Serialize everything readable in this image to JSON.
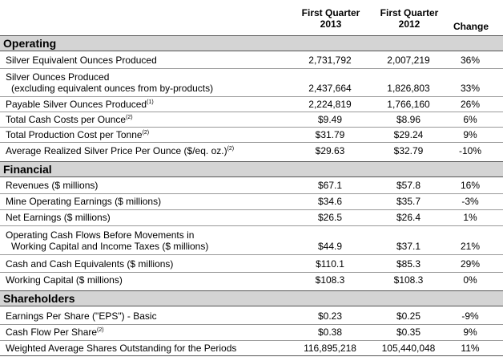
{
  "header": {
    "col1": [
      "First Quarter",
      "2013"
    ],
    "col2": [
      "First Quarter",
      "2012"
    ],
    "col3": "Change"
  },
  "sections": {
    "operating": "Operating",
    "financial": "Financial",
    "shareholders": "Shareholders"
  },
  "rows": [
    {
      "label": [
        "Silver Equivalent Ounces Produced"
      ],
      "v1": "2,731,792",
      "v2": "2,007,219",
      "v3": "36%"
    },
    {
      "label": [
        "Silver Ounces Produced",
        "   (excluding equivalent ounces from by-products)"
      ],
      "v1": "2,437,664",
      "v2": "1,826,803",
      "v3": "33%"
    },
    {
      "label": [
        "Payable Silver Ounces Produced"
      ],
      "note": "(1)",
      "v1": "2,224,819",
      "v2": "1,766,160",
      "v3": "26%"
    },
    {
      "label": [
        "Total Cash Costs per Ounce"
      ],
      "note": "(2)",
      "v1": "$9.49",
      "v2": "$8.96",
      "v3": "6%"
    },
    {
      "label": [
        "Total Production Cost per Tonne"
      ],
      "note": "(2)",
      "v1": "$31.79",
      "v2": "$29.24",
      "v3": "9%"
    },
    {
      "label": [
        "Average Realized Silver Price Per Ounce ($/eq. oz.)"
      ],
      "note": "(2)",
      "v1": "$29.63",
      "v2": "$32.79",
      "v3": "-10%"
    },
    {
      "label": [
        "Revenues ($ millions)"
      ],
      "v1": "$67.1",
      "v2": "$57.8",
      "v3": "16%"
    },
    {
      "label": [
        "Mine Operating Earnings ($ millions)"
      ],
      "v1": "$34.6",
      "v2": "$35.7",
      "v3": "-3%"
    },
    {
      "label": [
        "Net Earnings ($ millions)"
      ],
      "v1": "$26.5",
      "v2": "$26.4",
      "v3": "1%"
    },
    {
      "label": [
        "Operating Cash Flows Before Movements in",
        "   Working Capital and Income Taxes ($ millions)"
      ],
      "v1": "$44.9",
      "v2": "$37.1",
      "v3": "21%"
    },
    {
      "label": [
        "Cash and Cash Equivalents ($ millions)"
      ],
      "v1": "$110.1",
      "v2": "$85.3",
      "v3": "29%"
    },
    {
      "label": [
        "Working Capital ($ millions)"
      ],
      "v1": "$108.3",
      "v2": "$108.3",
      "v3": "0%"
    },
    {
      "label": [
        "Earnings Per Share (\"EPS\") - Basic"
      ],
      "v1": "$0.23",
      "v2": "$0.25",
      "v3": "-9%"
    },
    {
      "label": [
        "Cash Flow Per Share"
      ],
      "note": "(2)",
      "v1": "$0.38",
      "v2": "$0.35",
      "v3": "9%"
    },
    {
      "label": [
        "Weighted Average Shares Outstanding for the Periods"
      ],
      "v1": "116,895,218",
      "v2": "105,440,048",
      "v3": "11%"
    }
  ]
}
